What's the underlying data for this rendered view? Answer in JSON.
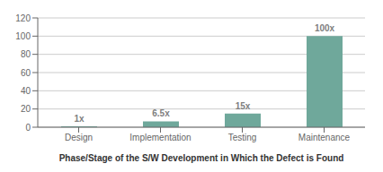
{
  "chart_data": {
    "type": "bar",
    "categories": [
      "Design",
      "Implementation",
      "Testing",
      "Maintenance"
    ],
    "values": [
      1,
      6.5,
      15,
      100
    ],
    "value_labels": [
      "1x",
      "6.5x",
      "15x",
      "100x"
    ],
    "data_labels": true,
    "color": "#6fa89b",
    "xlabel": "Phase/Stage of the S/W Development in Which the Defect is Found",
    "ylim": [
      0,
      120
    ],
    "yticks": [
      0,
      20,
      40,
      60,
      80,
      100,
      120
    ],
    "grid": true
  }
}
